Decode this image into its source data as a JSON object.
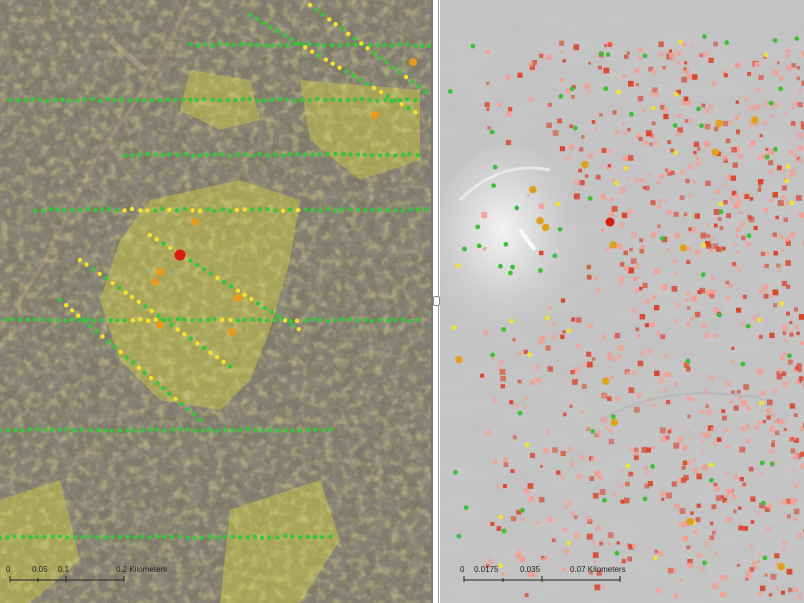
{
  "left_map": {
    "scale_labels": [
      "0",
      "0.05",
      "0.1",
      "0.2 Kilometers"
    ],
    "colors": {
      "green": "#39c53a",
      "yellow": "#f4e42a",
      "orange": "#e89b1c",
      "red": "#d81c10",
      "overlay": "#c8c84a"
    }
  },
  "right_map": {
    "scale_labels": [
      "0",
      "0.0175",
      "0.035",
      "0.07 Kilometers"
    ],
    "colors": {
      "hillshade": "#c8c8c8",
      "red": "#d9452e",
      "pink": "#f2a095",
      "green": "#3dbf3a",
      "yellow": "#f1e23a",
      "orange": "#e0a020"
    }
  }
}
